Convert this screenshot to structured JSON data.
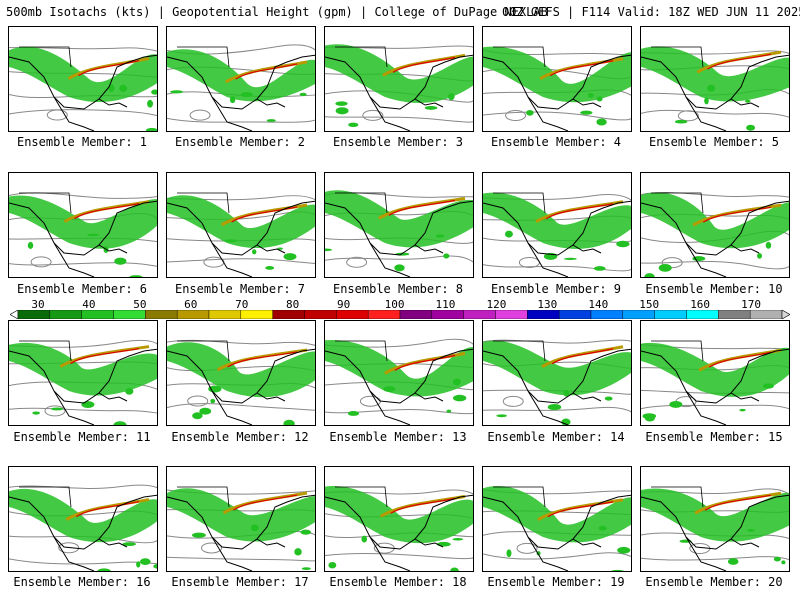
{
  "header": {
    "left_text": "500mb Isotachs (kts) | Geopotential Height (gpm) | College of DuPage NEXLAB",
    "right_text": "00Z GEFS | F114 Valid: 18Z WED JUN 11 2025"
  },
  "members": [
    {
      "caption": "Ensemble Member: 1"
    },
    {
      "caption": "Ensemble Member: 2"
    },
    {
      "caption": "Ensemble Member: 3"
    },
    {
      "caption": "Ensemble Member: 4"
    },
    {
      "caption": "Ensemble Member: 5"
    },
    {
      "caption": "Ensemble Member: 6"
    },
    {
      "caption": "Ensemble Member: 7"
    },
    {
      "caption": "Ensemble Member: 8"
    },
    {
      "caption": "Ensemble Member: 9"
    },
    {
      "caption": "Ensemble Member: 10"
    },
    {
      "caption": "Ensemble Member: 11"
    },
    {
      "caption": "Ensemble Member: 12"
    },
    {
      "caption": "Ensemble Member: 13"
    },
    {
      "caption": "Ensemble Member: 14"
    },
    {
      "caption": "Ensemble Member: 15"
    },
    {
      "caption": "Ensemble Member: 16"
    },
    {
      "caption": "Ensemble Member: 17"
    },
    {
      "caption": "Ensemble Member: 18"
    },
    {
      "caption": "Ensemble Member: 19"
    },
    {
      "caption": "Ensemble Member: 20"
    }
  ],
  "colorbar": {
    "ticks": [
      "30",
      "40",
      "50",
      "60",
      "70",
      "80",
      "90",
      "100",
      "110",
      "120",
      "130",
      "140",
      "150",
      "160",
      "170"
    ],
    "colors": [
      "#0a6b0a",
      "#169a16",
      "#22c022",
      "#33dd33",
      "#8a7a00",
      "#b89a00",
      "#e0c800",
      "#fff000",
      "#a00000",
      "#c00000",
      "#dd0000",
      "#ff2020",
      "#800080",
      "#a000a0",
      "#c020c0",
      "#e040e0",
      "#0000c0",
      "#0040e0",
      "#0080ff",
      "#00a0ff",
      "#00ccff",
      "#00ffff",
      "#808080",
      "#b0b0b0"
    ]
  }
}
